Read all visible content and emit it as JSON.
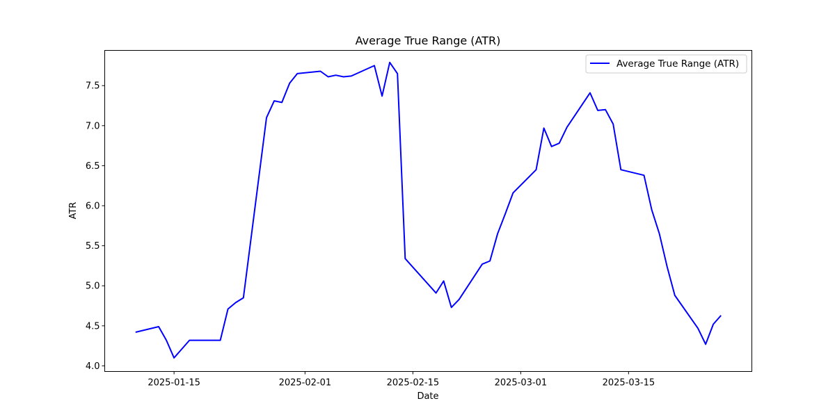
{
  "chart_data": {
    "type": "line",
    "title": "Average True Range (ATR)",
    "xlabel": "Date",
    "ylabel": "ATR",
    "x_type": "date",
    "xlim": [
      "2025-01-06",
      "2025-03-31"
    ],
    "ylim": [
      3.93,
      7.94
    ],
    "x_ticks": [
      "2025-01-15",
      "2025-02-01",
      "2025-02-15",
      "2025-03-01",
      "2025-03-15"
    ],
    "y_ticks": [
      4.0,
      4.5,
      5.0,
      5.5,
      6.0,
      6.5,
      7.0,
      7.5
    ],
    "y_tick_labels": [
      "4.0",
      "4.5",
      "5.0",
      "5.5",
      "6.0",
      "6.5",
      "7.0",
      "7.5"
    ],
    "grid": false,
    "legend_position": "top-right",
    "series": [
      {
        "name": "Average True Range (ATR)",
        "color": "#0000ff",
        "x": [
          "2025-01-10",
          "2025-01-13",
          "2025-01-14",
          "2025-01-15",
          "2025-01-17",
          "2025-01-21",
          "2025-01-22",
          "2025-01-23",
          "2025-01-24",
          "2025-01-27",
          "2025-01-28",
          "2025-01-29",
          "2025-01-30",
          "2025-01-31",
          "2025-02-03",
          "2025-02-04",
          "2025-02-05",
          "2025-02-06",
          "2025-02-07",
          "2025-02-10",
          "2025-02-11",
          "2025-02-12",
          "2025-02-13",
          "2025-02-14",
          "2025-02-18",
          "2025-02-19",
          "2025-02-20",
          "2025-02-21",
          "2025-02-24",
          "2025-02-25",
          "2025-02-26",
          "2025-02-27",
          "2025-02-28",
          "2025-03-03",
          "2025-03-04",
          "2025-03-05",
          "2025-03-06",
          "2025-03-07",
          "2025-03-10",
          "2025-03-11",
          "2025-03-12",
          "2025-03-13",
          "2025-03-14",
          "2025-03-17",
          "2025-03-18",
          "2025-03-19",
          "2025-03-20",
          "2025-03-21",
          "2025-03-24",
          "2025-03-25",
          "2025-03-26",
          "2025-03-27"
        ],
        "y": [
          4.42,
          4.49,
          4.32,
          4.1,
          4.32,
          4.32,
          4.71,
          4.79,
          4.85,
          7.1,
          7.31,
          7.29,
          7.53,
          7.65,
          7.68,
          7.61,
          7.63,
          7.61,
          7.62,
          7.75,
          7.37,
          7.79,
          7.65,
          5.34,
          4.91,
          5.06,
          4.73,
          4.83,
          5.27,
          5.31,
          5.65,
          5.9,
          6.16,
          6.45,
          6.97,
          6.74,
          6.78,
          6.98,
          7.41,
          7.19,
          7.2,
          7.02,
          6.45,
          6.38,
          5.95,
          5.65,
          5.24,
          4.88,
          4.47,
          4.27,
          4.52,
          4.63
        ]
      }
    ]
  }
}
